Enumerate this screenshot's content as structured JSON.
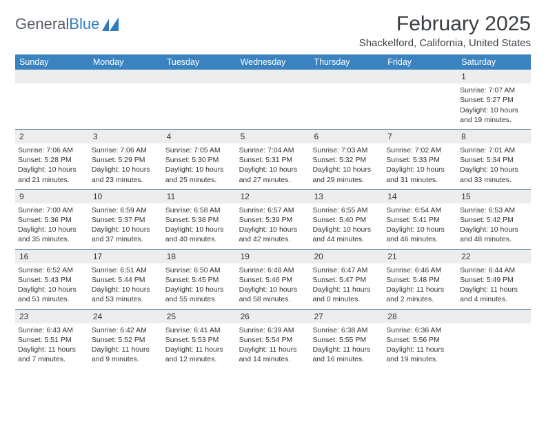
{
  "logo": {
    "text_gray": "General",
    "text_blue": "Blue"
  },
  "title": "February 2025",
  "location": "Shackelford, California, United States",
  "colors": {
    "header_bg": "#3b83c0",
    "header_fg": "#ffffff",
    "daynum_bg": "#ededed",
    "week_border": "#5a7da4",
    "text": "#333333",
    "title_color": "#3a3f44"
  },
  "typography": {
    "title_fontsize": 30,
    "location_fontsize": 15,
    "header_fontsize": 12.5,
    "cell_fontsize": 10.5,
    "logo_fontsize": 22
  },
  "day_names": [
    "Sunday",
    "Monday",
    "Tuesday",
    "Wednesday",
    "Thursday",
    "Friday",
    "Saturday"
  ],
  "labels": {
    "sunrise": "Sunrise:",
    "sunset": "Sunset:",
    "daylight": "Daylight:"
  },
  "weeks": [
    [
      {
        "day": ""
      },
      {
        "day": ""
      },
      {
        "day": ""
      },
      {
        "day": ""
      },
      {
        "day": ""
      },
      {
        "day": ""
      },
      {
        "day": "1",
        "sunrise": "7:07 AM",
        "sunset": "5:27 PM",
        "daylight": "10 hours and 19 minutes."
      }
    ],
    [
      {
        "day": "2",
        "sunrise": "7:06 AM",
        "sunset": "5:28 PM",
        "daylight": "10 hours and 21 minutes."
      },
      {
        "day": "3",
        "sunrise": "7:06 AM",
        "sunset": "5:29 PM",
        "daylight": "10 hours and 23 minutes."
      },
      {
        "day": "4",
        "sunrise": "7:05 AM",
        "sunset": "5:30 PM",
        "daylight": "10 hours and 25 minutes."
      },
      {
        "day": "5",
        "sunrise": "7:04 AM",
        "sunset": "5:31 PM",
        "daylight": "10 hours and 27 minutes."
      },
      {
        "day": "6",
        "sunrise": "7:03 AM",
        "sunset": "5:32 PM",
        "daylight": "10 hours and 29 minutes."
      },
      {
        "day": "7",
        "sunrise": "7:02 AM",
        "sunset": "5:33 PM",
        "daylight": "10 hours and 31 minutes."
      },
      {
        "day": "8",
        "sunrise": "7:01 AM",
        "sunset": "5:34 PM",
        "daylight": "10 hours and 33 minutes."
      }
    ],
    [
      {
        "day": "9",
        "sunrise": "7:00 AM",
        "sunset": "5:36 PM",
        "daylight": "10 hours and 35 minutes."
      },
      {
        "day": "10",
        "sunrise": "6:59 AM",
        "sunset": "5:37 PM",
        "daylight": "10 hours and 37 minutes."
      },
      {
        "day": "11",
        "sunrise": "6:58 AM",
        "sunset": "5:38 PM",
        "daylight": "10 hours and 40 minutes."
      },
      {
        "day": "12",
        "sunrise": "6:57 AM",
        "sunset": "5:39 PM",
        "daylight": "10 hours and 42 minutes."
      },
      {
        "day": "13",
        "sunrise": "6:55 AM",
        "sunset": "5:40 PM",
        "daylight": "10 hours and 44 minutes."
      },
      {
        "day": "14",
        "sunrise": "6:54 AM",
        "sunset": "5:41 PM",
        "daylight": "10 hours and 46 minutes."
      },
      {
        "day": "15",
        "sunrise": "6:53 AM",
        "sunset": "5:42 PM",
        "daylight": "10 hours and 48 minutes."
      }
    ],
    [
      {
        "day": "16",
        "sunrise": "6:52 AM",
        "sunset": "5:43 PM",
        "daylight": "10 hours and 51 minutes."
      },
      {
        "day": "17",
        "sunrise": "6:51 AM",
        "sunset": "5:44 PM",
        "daylight": "10 hours and 53 minutes."
      },
      {
        "day": "18",
        "sunrise": "6:50 AM",
        "sunset": "5:45 PM",
        "daylight": "10 hours and 55 minutes."
      },
      {
        "day": "19",
        "sunrise": "6:48 AM",
        "sunset": "5:46 PM",
        "daylight": "10 hours and 58 minutes."
      },
      {
        "day": "20",
        "sunrise": "6:47 AM",
        "sunset": "5:47 PM",
        "daylight": "11 hours and 0 minutes."
      },
      {
        "day": "21",
        "sunrise": "6:46 AM",
        "sunset": "5:48 PM",
        "daylight": "11 hours and 2 minutes."
      },
      {
        "day": "22",
        "sunrise": "6:44 AM",
        "sunset": "5:49 PM",
        "daylight": "11 hours and 4 minutes."
      }
    ],
    [
      {
        "day": "23",
        "sunrise": "6:43 AM",
        "sunset": "5:51 PM",
        "daylight": "11 hours and 7 minutes."
      },
      {
        "day": "24",
        "sunrise": "6:42 AM",
        "sunset": "5:52 PM",
        "daylight": "11 hours and 9 minutes."
      },
      {
        "day": "25",
        "sunrise": "6:41 AM",
        "sunset": "5:53 PM",
        "daylight": "11 hours and 12 minutes."
      },
      {
        "day": "26",
        "sunrise": "6:39 AM",
        "sunset": "5:54 PM",
        "daylight": "11 hours and 14 minutes."
      },
      {
        "day": "27",
        "sunrise": "6:38 AM",
        "sunset": "5:55 PM",
        "daylight": "11 hours and 16 minutes."
      },
      {
        "day": "28",
        "sunrise": "6:36 AM",
        "sunset": "5:56 PM",
        "daylight": "11 hours and 19 minutes."
      },
      {
        "day": ""
      }
    ]
  ]
}
